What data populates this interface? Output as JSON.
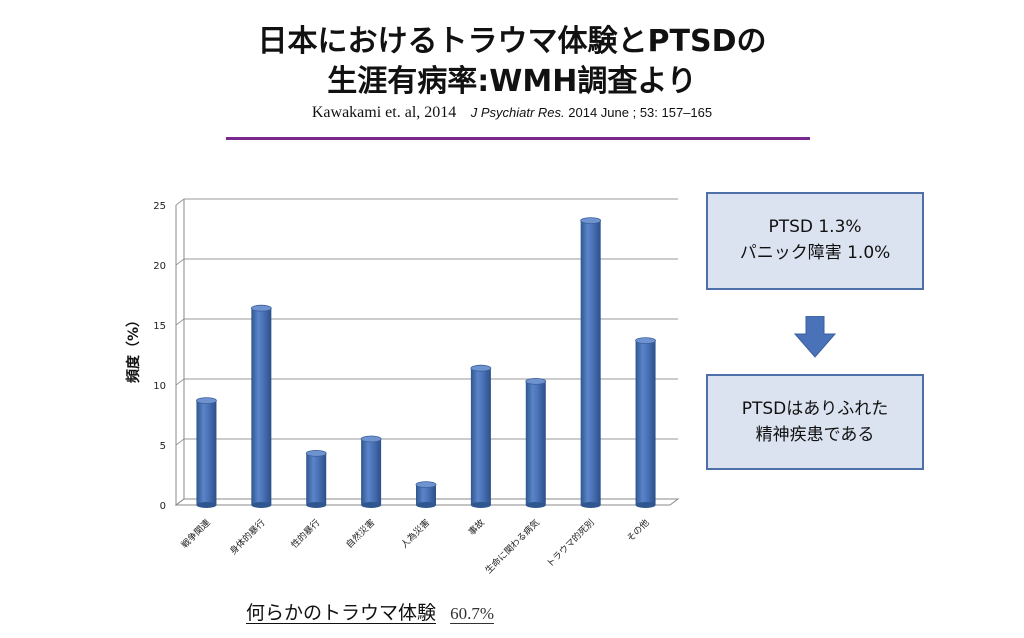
{
  "slide": {
    "title_line1": "日本におけるトラウマ体験とPTSDの",
    "title_line2": "生涯有病率:WMH調査より",
    "citation_author": "Kawakami  et. al, 2014",
    "citation_journal": "J Psychiatr Res.",
    "citation_details": "2014 June ; 53: 157–165",
    "accent_color": "#7a2a8c"
  },
  "callouts": {
    "box1_line1": "PTSD 1.3%",
    "box1_line2": "パニック障害 1.0%",
    "arrow_icon": "down-arrow",
    "box2_line1": "PTSDはありふれた",
    "box2_line2": "精神疾患である",
    "box_fill": "#dbe3f0",
    "box_border": "#4f6fa8"
  },
  "footer": {
    "label": "何らかのトラウマ体験",
    "value": "60.7%"
  },
  "chart_data": {
    "type": "bar",
    "categories": [
      "戦争関連",
      "身体的暴行",
      "性的暴行",
      "自然災害",
      "人為災害",
      "事故",
      "生命に関わる病気",
      "トラウマ的死別",
      "その他"
    ],
    "values": [
      8.7,
      16.4,
      4.3,
      5.5,
      1.7,
      11.4,
      10.3,
      23.7,
      13.7
    ],
    "ylabel": "頻度（%）",
    "xlabel": "",
    "ylim": [
      0,
      25
    ],
    "yticks": [
      0,
      5,
      10,
      15,
      20,
      25
    ],
    "grid": true,
    "bar_color": "#4a72b8"
  }
}
